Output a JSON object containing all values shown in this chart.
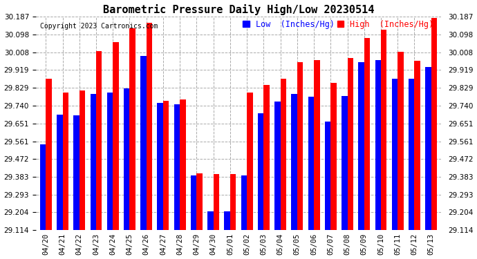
{
  "title": "Barometric Pressure Daily High/Low 20230514",
  "copyright": "Copyright 2023 Cartronics.com",
  "legend_low": "Low  (Inches/Hg)",
  "legend_high": "High  (Inches/Hg)",
  "low_color": "#0000ff",
  "high_color": "#ff0000",
  "background_color": "#ffffff",
  "ylim": [
    29.114,
    30.187
  ],
  "yticks": [
    29.114,
    29.204,
    29.293,
    29.383,
    29.472,
    29.561,
    29.651,
    29.74,
    29.829,
    29.919,
    30.008,
    30.098,
    30.187
  ],
  "dates": [
    "04/20",
    "04/21",
    "04/22",
    "04/23",
    "04/24",
    "04/25",
    "04/26",
    "04/27",
    "04/28",
    "04/29",
    "04/30",
    "05/01",
    "05/02",
    "05/03",
    "05/04",
    "05/05",
    "05/06",
    "05/07",
    "05/08",
    "05/09",
    "05/10",
    "05/11",
    "05/12",
    "05/13"
  ],
  "low_vals": [
    29.545,
    29.695,
    29.69,
    29.8,
    29.805,
    29.825,
    29.99,
    29.755,
    29.745,
    29.39,
    29.21,
    29.21,
    29.39,
    29.7,
    29.76,
    29.8,
    29.785,
    29.66,
    29.79,
    29.96,
    29.97,
    29.875,
    29.875,
    29.935
  ],
  "high_vals": [
    29.875,
    29.805,
    29.815,
    30.015,
    30.06,
    30.13,
    30.155,
    29.765,
    29.77,
    29.4,
    29.395,
    29.395,
    29.805,
    29.845,
    29.875,
    29.96,
    29.97,
    29.855,
    29.98,
    30.08,
    30.12,
    30.01,
    29.965,
    30.18
  ],
  "grid_color": "#aaaaaa",
  "title_fontsize": 11,
  "tick_fontsize": 7.5,
  "legend_fontsize": 8.5,
  "bar_width": 0.35
}
